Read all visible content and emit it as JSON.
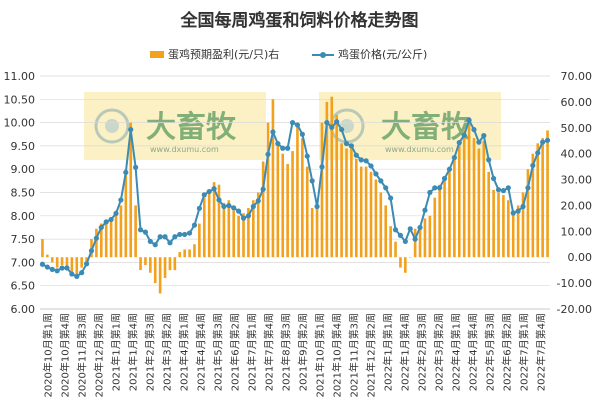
{
  "title": "全国每周鸡蛋和饲料价格走势图",
  "legend": {
    "profit_label": "蛋鸡预期盈利(元/只)右",
    "price_label": "鸡蛋价格(元/公斤)"
  },
  "colors": {
    "bar": "#f3a01c",
    "line": "#3b8bb5",
    "grid": "#d9d9d9",
    "watermark_bg": "#fbf1c4"
  },
  "watermark": {
    "brand": "大畜牧",
    "url": "www.dxumu.com"
  },
  "chart_data": {
    "type": "bar+line",
    "left_axis": {
      "min": 6.0,
      "max": 11.0,
      "step": 0.5,
      "ticks": [
        "6.00",
        "6.50",
        "7.00",
        "7.50",
        "8.00",
        "8.50",
        "9.00",
        "9.50",
        "10.00",
        "10.50",
        "11.00"
      ]
    },
    "right_axis": {
      "min": -20,
      "max": 70,
      "step": 10,
      "ticks": [
        "-20.00",
        "-10.00",
        "0.00",
        "10.00",
        "20.00",
        "30.00",
        "40.00",
        "50.00",
        "60.00",
        "70.00"
      ]
    },
    "x_labels": [
      "2020年10月第1周",
      "2020年10月第4周",
      "2020年11月第3周",
      "2020年12月第2周",
      "2021年1月第1周",
      "2021年1月第4周",
      "2021年2月第3周",
      "2021年3月第2周",
      "2021年4月第1周",
      "2021年4月第4周",
      "2021年5月第3周",
      "2021年6月第2周",
      "2021年7月第1周",
      "2021年7月第4周",
      "2021年8月第3周",
      "2021年9月第2周",
      "2021年10月第1周",
      "2021年10月第4周",
      "2021年11月第3周",
      "2021年12月第2周",
      "2022年1月第1周",
      "2022年1月第4周",
      "2022年2月第3周",
      "2022年3月第2周",
      "2022年4月第1周",
      "2022年4月第4周",
      "2022年5月第3周",
      "2022年6月第2周",
      "2022年7月第1周",
      "2022年7月第4周"
    ],
    "series": [
      {
        "name": "鸡蛋价格(元/公斤)",
        "axis": "left",
        "type": "line",
        "values": [
          6.96,
          6.9,
          6.85,
          6.82,
          6.88,
          6.88,
          6.75,
          6.7,
          6.78,
          6.97,
          7.25,
          7.52,
          7.75,
          7.87,
          7.92,
          8.05,
          8.34,
          8.93,
          9.85,
          9.04,
          7.7,
          7.65,
          7.45,
          7.38,
          7.55,
          7.55,
          7.42,
          7.55,
          7.6,
          7.6,
          7.63,
          7.8,
          8.16,
          8.45,
          8.52,
          8.58,
          8.34,
          8.2,
          8.22,
          8.17,
          8.1,
          7.95,
          8.0,
          8.2,
          8.32,
          8.57,
          9.32,
          9.8,
          9.55,
          9.45,
          9.45,
          10.0,
          9.95,
          9.75,
          9.28,
          8.75,
          8.2,
          9.05,
          10.0,
          9.9,
          10.02,
          9.85,
          9.55,
          9.5,
          9.3,
          9.2,
          9.18,
          9.07,
          8.9,
          8.75,
          8.6,
          8.38,
          7.7,
          7.58,
          7.45,
          7.72,
          7.5,
          7.75,
          8.12,
          8.5,
          8.6,
          8.6,
          8.8,
          9.0,
          9.25,
          9.57,
          9.73,
          10.05,
          9.85,
          9.58,
          9.72,
          9.2,
          8.8,
          8.56,
          8.54,
          8.6,
          8.06,
          8.1,
          8.2,
          8.6,
          9.08,
          9.35,
          9.58,
          9.62
        ]
      },
      {
        "name": "蛋鸡预期盈利(元/只)右",
        "axis": "right",
        "type": "bar",
        "values": [
          7,
          1,
          -2,
          -4,
          -3,
          -4,
          -6,
          -8,
          -4,
          -2,
          7,
          11,
          13,
          14,
          15,
          18,
          20,
          34,
          52,
          20,
          -5,
          -3,
          -6,
          -10,
          -14,
          -8,
          -5,
          -5,
          2,
          3,
          3,
          5,
          13,
          23,
          25,
          29,
          28,
          21,
          22,
          18,
          16,
          17,
          19,
          22,
          25,
          37,
          52,
          61,
          43,
          40,
          36,
          41,
          51,
          46,
          35,
          19,
          21,
          52,
          60,
          62,
          55,
          44,
          42,
          42,
          38,
          35,
          35,
          33,
          30,
          25,
          20,
          12,
          6,
          -4,
          -6,
          0,
          11,
          12,
          15,
          16,
          23,
          28,
          31,
          34,
          38,
          44,
          49,
          54,
          46,
          42,
          45,
          33,
          26,
          25,
          24,
          22,
          18,
          20,
          25,
          34,
          40,
          44,
          46,
          49
        ]
      }
    ]
  }
}
